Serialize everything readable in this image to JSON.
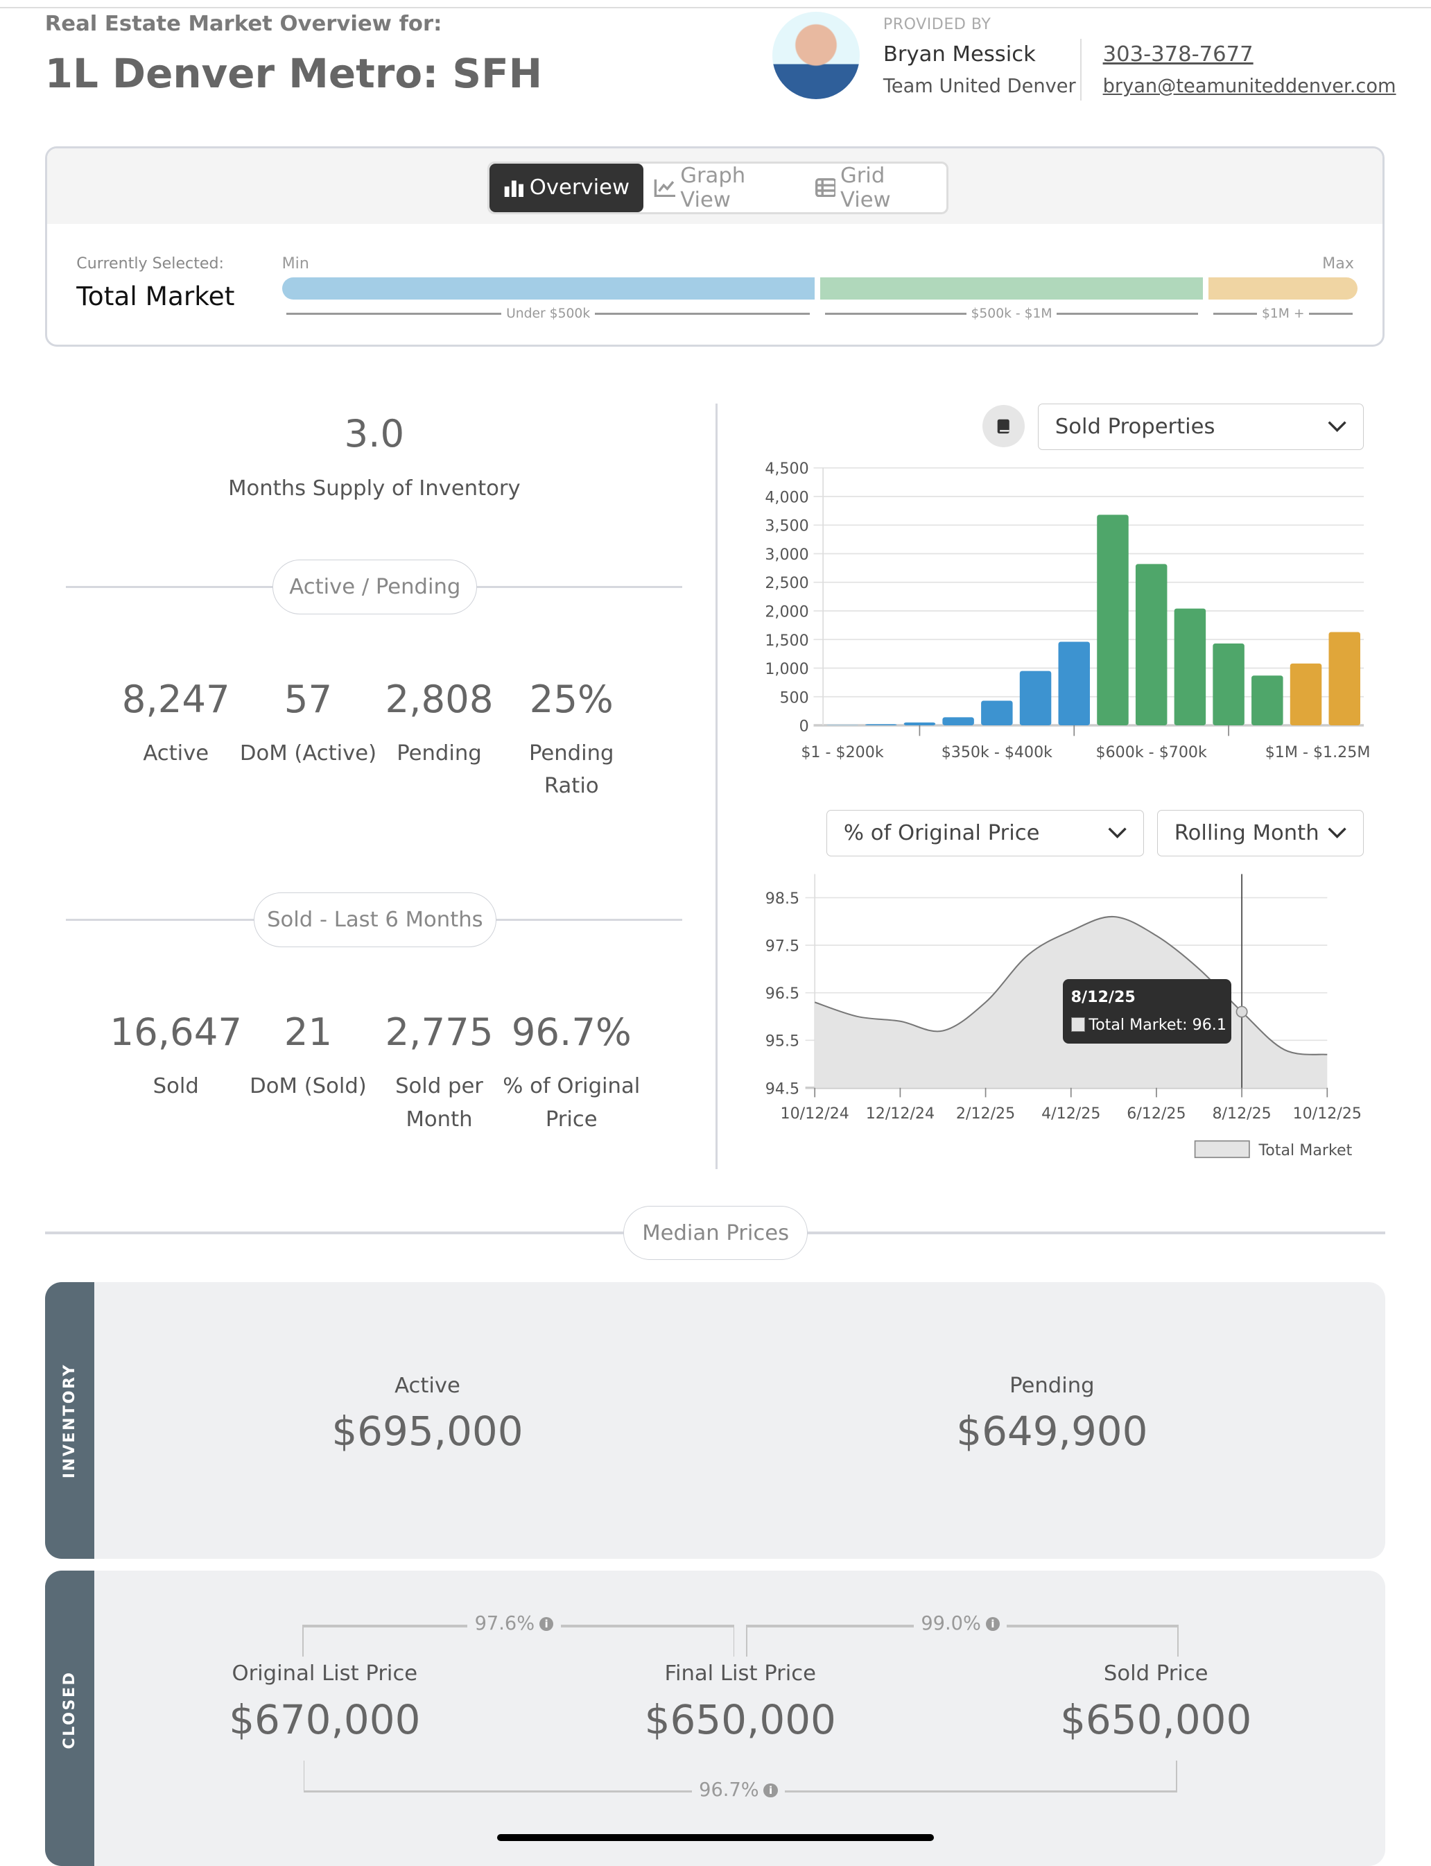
{
  "header": {
    "subtitle": "Real Estate Market Overview for:",
    "title": "1L Denver Metro: SFH"
  },
  "agent": {
    "provided_by": "PROVIDED BY",
    "name": "Bryan Messick",
    "team": "Team United Denver",
    "phone": "303-378-7677",
    "email": "bryan@teamuniteddenver.com"
  },
  "view_tabs": [
    {
      "label": "Overview",
      "icon": "bar-chart-icon",
      "active": true
    },
    {
      "label": "Graph View",
      "icon": "line-chart-icon",
      "active": false
    },
    {
      "label": "Grid View",
      "icon": "table-icon",
      "active": false
    }
  ],
  "price_range": {
    "currently_selected_label": "Currently Selected:",
    "selected": "Total Market",
    "min_label": "Min",
    "max_label": "Max",
    "segments": [
      {
        "label": "Under $500k",
        "color": "#a3cde6"
      },
      {
        "label": "$500k - $1M",
        "color": "#b0d8bb"
      },
      {
        "label": "$1M +",
        "color": "#f0d5a3"
      }
    ]
  },
  "supply": {
    "value": "3.0",
    "label": "Months Supply of Inventory"
  },
  "active_pending": {
    "heading": "Active / Pending",
    "stats": [
      {
        "value": "8,247",
        "label": "Active"
      },
      {
        "value": "57",
        "label": "DoM (Active)"
      },
      {
        "value": "2,808",
        "label": "Pending"
      },
      {
        "value": "25%",
        "label": "Pending Ratio"
      }
    ]
  },
  "sold": {
    "heading": "Sold - Last 6 Months",
    "stats": [
      {
        "value": "16,647",
        "label": "Sold"
      },
      {
        "value": "21",
        "label": "DoM (Sold)"
      },
      {
        "value": "2,775",
        "label": "Sold per Month"
      },
      {
        "value": "96.7%",
        "label": "% of Original Price"
      }
    ]
  },
  "bar_chart_controls": {
    "icon": "book-icon",
    "dropdown": "Sold Properties"
  },
  "line_chart_controls": {
    "metric_dropdown": "% of Original Price",
    "period_dropdown": "Rolling Month"
  },
  "chart_data": [
    {
      "type": "bar",
      "categories": [
        "$1 - $200k",
        "",
        "",
        "",
        "$350k - $400k",
        "",
        "",
        "",
        "$600k - $700k",
        "",
        "",
        "",
        "$1M - $1.25M",
        ""
      ],
      "values": [
        10,
        20,
        50,
        140,
        430,
        950,
        1460,
        3680,
        2820,
        2040,
        1430,
        870,
        1080,
        1630
      ],
      "colors": [
        "#a3cde6",
        "#3d93d0",
        "#3d93d0",
        "#3d93d0",
        "#3d93d0",
        "#3d93d0",
        "#3d93d0",
        "#4fa66a",
        "#4fa66a",
        "#4fa66a",
        "#4fa66a",
        "#4fa66a",
        "#e0a63a",
        "#e0a63a"
      ],
      "ylim": [
        0,
        4500
      ],
      "yticks": [
        "0",
        "500",
        "1,000",
        "1,500",
        "2,000",
        "2,500",
        "3,000",
        "3,500",
        "4,000",
        "4,500"
      ],
      "grid": true
    },
    {
      "type": "area",
      "series": [
        {
          "name": "Total Market",
          "x": [
            "10/12/24",
            "11/12/24",
            "12/12/24",
            "1/12/25",
            "2/12/25",
            "3/12/25",
            "4/12/25",
            "5/12/25",
            "6/12/25",
            "7/12/25",
            "8/12/25",
            "9/12/25",
            "10/12/25"
          ],
          "values": [
            96.3,
            96.0,
            95.9,
            95.7,
            96.3,
            97.3,
            97.8,
            98.1,
            97.7,
            97.0,
            96.1,
            95.3,
            95.2
          ]
        }
      ],
      "xticks": [
        "10/12/24",
        "12/12/24",
        "2/12/25",
        "4/12/25",
        "6/12/25",
        "8/12/25",
        "10/12/25"
      ],
      "yticks": [
        "94.5",
        "95.5",
        "96.5",
        "97.5",
        "98.5"
      ],
      "ylim": [
        94.5,
        98.9
      ],
      "grid": true,
      "legend": "bottom-right",
      "fill": "#e4e4e4",
      "line": "#777777",
      "tooltip": {
        "date": "8/12/25",
        "text": "Total Market: 96.1"
      }
    }
  ],
  "median": {
    "heading": "Median Prices",
    "inventory": {
      "side_label": "INVENTORY",
      "items": [
        {
          "label": "Active",
          "value": "$695,000"
        },
        {
          "label": "Pending",
          "value": "$649,900"
        }
      ]
    },
    "closed": {
      "side_label": "CLOSED",
      "items": [
        {
          "label": "Original List Price",
          "value": "$670,000"
        },
        {
          "label": "Final List Price",
          "value": "$650,000"
        },
        {
          "label": "Sold Price",
          "value": "$650,000"
        }
      ],
      "ratios": {
        "orig_to_final": "97.6%",
        "final_to_sold": "99.0%",
        "orig_to_sold": "96.7%"
      }
    }
  }
}
